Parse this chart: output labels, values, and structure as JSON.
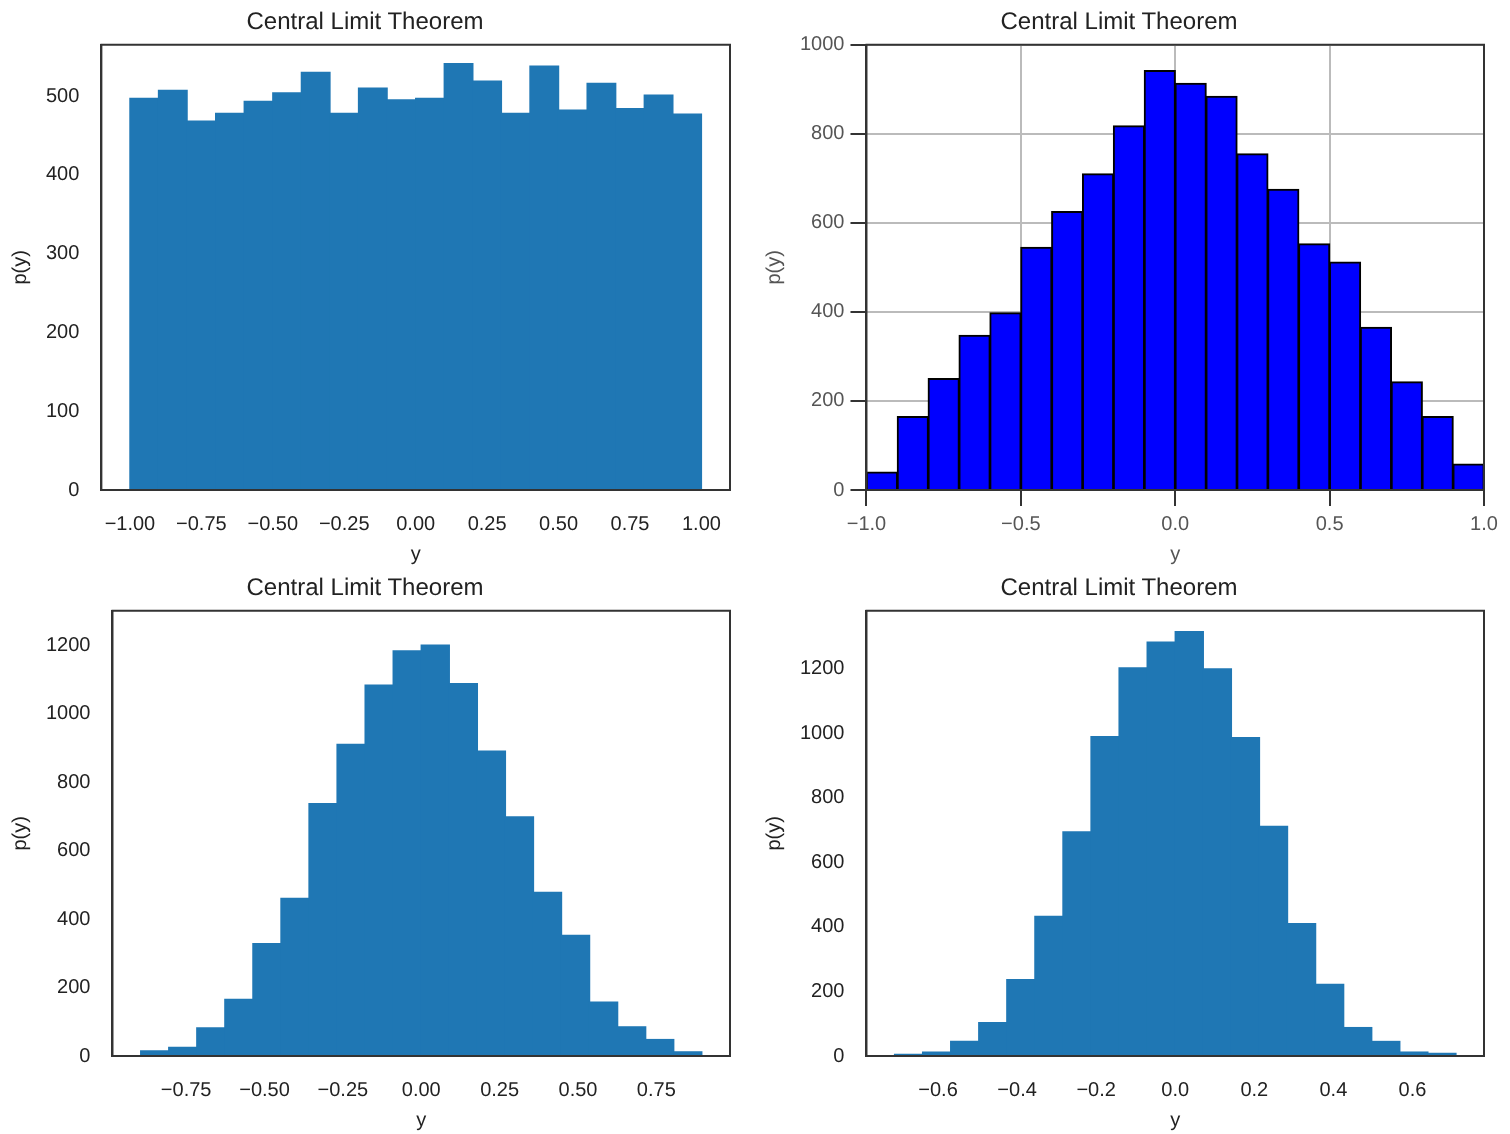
{
  "chart_data": [
    {
      "type": "histogram",
      "title": "Central Limit Theorem",
      "xlabel": "y",
      "ylabel": "p(y)",
      "color": "#1f77b4",
      "bins": [
        -1,
        -0.9,
        -0.8,
        -0.7,
        -0.6,
        -0.5,
        -0.4,
        -0.3,
        -0.2,
        -0.1,
        0,
        0.1,
        0.2,
        0.3,
        0.4,
        0.5,
        0.6,
        0.7,
        0.8,
        0.9,
        1
      ],
      "values": [
        497,
        507,
        468,
        478,
        493,
        504,
        530,
        478,
        510,
        495,
        497,
        541,
        519,
        478,
        538,
        482,
        516,
        484,
        501,
        477
      ],
      "xlim": [
        -1.1,
        1.1
      ],
      "xticks": [
        {
          "value": -1,
          "label": "−1.00"
        },
        {
          "value": -0.75,
          "label": "−0.75"
        },
        {
          "value": -0.5,
          "label": "−0.50"
        },
        {
          "value": -0.25,
          "label": "−0.25"
        },
        {
          "value": 0,
          "label": "0.00"
        },
        {
          "value": 0.25,
          "label": "0.25"
        },
        {
          "value": 0.5,
          "label": "0.50"
        },
        {
          "value": 0.75,
          "label": "0.75"
        },
        {
          "value": 1,
          "label": "1.00"
        }
      ],
      "ylim": [
        0,
        565
      ],
      "yticks": [
        0,
        100,
        200,
        300,
        400,
        500
      ]
    },
    {
      "type": "histogram",
      "title": "Central Limit Theorem",
      "xlabel": "y",
      "ylabel": "p(y)",
      "color": "#0000ff",
      "grid": true,
      "bins": [
        -1,
        -0.9,
        -0.8,
        -0.7,
        -0.6,
        -0.5,
        -0.4,
        -0.3,
        -0.2,
        -0.1,
        0,
        0.1,
        0.2,
        0.3,
        0.4,
        0.5,
        0.6,
        0.7,
        0.8,
        0.9,
        1
      ],
      "values": [
        40,
        165,
        250,
        347,
        398,
        545,
        625,
        710,
        818,
        942,
        913,
        884,
        755,
        675,
        553,
        512,
        365,
        243,
        165,
        58
      ],
      "xlim": [
        -1,
        1
      ],
      "xticks": [
        {
          "value": -1,
          "label": "−1.0"
        },
        {
          "value": -0.5,
          "label": "−0.5"
        },
        {
          "value": 0,
          "label": "0.0"
        },
        {
          "value": 0.5,
          "label": "0.5"
        },
        {
          "value": 1,
          "label": "1.0"
        }
      ],
      "ylim": [
        0,
        1000
      ],
      "yticks": [
        0,
        200,
        400,
        600,
        800,
        1000
      ]
    },
    {
      "type": "histogram",
      "title": "Central Limit Theorem",
      "xlabel": "y",
      "ylabel": "p(y)",
      "color": "#1f77b4",
      "bins": [
        -0.895,
        -0.8055,
        -0.716,
        -0.6265,
        -0.537,
        -0.4475,
        -0.358,
        -0.2685,
        -0.179,
        -0.0895,
        0,
        0.0895,
        0.179,
        0.2685,
        0.358,
        0.4475,
        0.537,
        0.6265,
        0.716,
        0.8055,
        0.895
      ],
      "values": [
        15,
        25,
        82,
        165,
        328,
        460,
        737,
        910,
        1083,
        1183,
        1200,
        1087,
        890,
        698,
        478,
        352,
        157,
        85,
        48,
        12
      ],
      "xlim": [
        -0.985,
        0.985
      ],
      "xticks": [
        {
          "value": -0.75,
          "label": "−0.75"
        },
        {
          "value": -0.5,
          "label": "−0.50"
        },
        {
          "value": -0.25,
          "label": "−0.25"
        },
        {
          "value": 0,
          "label": "0.00"
        },
        {
          "value": 0.25,
          "label": "0.25"
        },
        {
          "value": 0.5,
          "label": "0.50"
        },
        {
          "value": 0.75,
          "label": "0.75"
        }
      ],
      "ylim": [
        0,
        1300
      ],
      "yticks": [
        0,
        200,
        400,
        600,
        800,
        1000,
        1200
      ]
    },
    {
      "type": "histogram",
      "title": "Central Limit Theorem",
      "xlabel": "y",
      "ylabel": "p(y)",
      "color": "#1f77b4",
      "bins": [
        -0.71,
        -0.639,
        -0.568,
        -0.497,
        -0.426,
        -0.355,
        -0.284,
        -0.213,
        -0.142,
        -0.071,
        0,
        0.071,
        0.142,
        0.213,
        0.284,
        0.355,
        0.426,
        0.497,
        0.568,
        0.639,
        0.71
      ],
      "values": [
        5,
        12,
        45,
        103,
        237,
        433,
        695,
        990,
        1203,
        1283,
        1315,
        1200,
        987,
        712,
        410,
        222,
        88,
        45,
        12,
        8
      ],
      "xlim": [
        -0.781,
        0.781
      ],
      "xticks": [
        {
          "value": -0.6,
          "label": "−0.6"
        },
        {
          "value": -0.4,
          "label": "−0.4"
        },
        {
          "value": -0.2,
          "label": "−0.2"
        },
        {
          "value": 0,
          "label": "0.0"
        },
        {
          "value": 0.2,
          "label": "0.2"
        },
        {
          "value": 0.4,
          "label": "0.4"
        },
        {
          "value": 0.6,
          "label": "0.6"
        }
      ],
      "ylim": [
        0,
        1380
      ],
      "yticks": [
        0,
        200,
        400,
        600,
        800,
        1000,
        1200
      ]
    }
  ]
}
